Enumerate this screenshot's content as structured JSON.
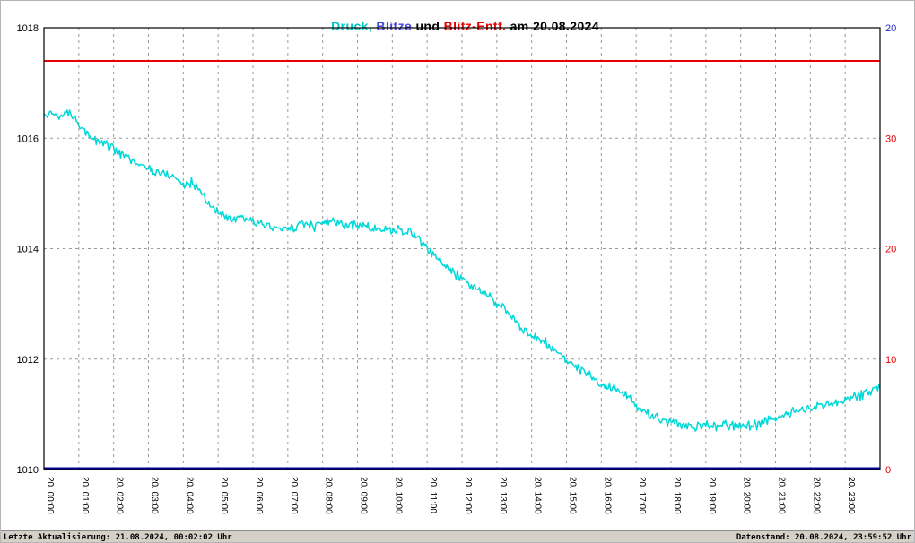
{
  "title": {
    "druck": "Druck,",
    "blitze": " Blitze",
    "und": " und ",
    "entf": "Blitz-Entf.",
    "date": " am 20.08.2024"
  },
  "colors": {
    "druck": "#00d8d8",
    "blitze": "#000090",
    "blitz_entf": "#e80000",
    "grid": "#9a9a9a",
    "axis_text": "#000000",
    "right_axis_red_text": "#e80000",
    "right_axis_blue_text": "#2a2acc",
    "footer_background": "#d4d0c8"
  },
  "footer": {
    "left": "Letzte Aktualisierung: 21.08.2024, 00:02:02 Uhr",
    "right": "Datenstand: 20.08.2024, 23:59:52 Uhr"
  },
  "chart_data": {
    "type": "line",
    "title": "Druck, Blitze und Blitz-Entf. am 20.08.2024",
    "x": {
      "start_hour": 0,
      "end_hour": 24,
      "tick_labels": [
        "20. 00:00",
        "20. 01:00",
        "20. 02:00",
        "20. 03:00",
        "20. 04:00",
        "20. 05:00",
        "20. 06:00",
        "20. 07:00",
        "20. 08:00",
        "20. 09:00",
        "20. 10:00",
        "20. 11:00",
        "20. 12:00",
        "20. 13:00",
        "20. 14:00",
        "20. 15:00",
        "20. 16:00",
        "20. 17:00",
        "20. 18:00",
        "20. 19:00",
        "20. 20:00",
        "20. 21:00",
        "20. 22:00",
        "20. 23:00"
      ]
    },
    "left_axis": {
      "lim": [
        1010,
        1018
      ],
      "ticks": [
        1010,
        1012,
        1014,
        1016,
        1018
      ]
    },
    "right_axis_red": {
      "lim": [
        0,
        40
      ],
      "ticks": [
        0,
        10,
        20,
        30
      ]
    },
    "right_axis_blue": {
      "lim": [
        0,
        20
      ],
      "ticks": [
        20
      ]
    },
    "grid": {
      "vertical": "hourly-dashed",
      "horizontal": "every-2hPa-dashed",
      "color": "#9a9a9a"
    },
    "series": [
      {
        "name": "Druck",
        "axis": "left",
        "color": "#00d8d8",
        "x_step_minutes": 15,
        "values": [
          1016.4,
          1016.45,
          1016.4,
          1016.45,
          1016.3,
          1016.1,
          1015.95,
          1015.9,
          1015.8,
          1015.7,
          1015.6,
          1015.5,
          1015.45,
          1015.4,
          1015.35,
          1015.3,
          1015.15,
          1015.2,
          1015.05,
          1014.8,
          1014.65,
          1014.55,
          1014.5,
          1014.55,
          1014.5,
          1014.45,
          1014.4,
          1014.35,
          1014.35,
          1014.4,
          1014.45,
          1014.4,
          1014.45,
          1014.5,
          1014.45,
          1014.4,
          1014.45,
          1014.4,
          1014.35,
          1014.35,
          1014.3,
          1014.35,
          1014.3,
          1014.2,
          1014.0,
          1013.85,
          1013.7,
          1013.55,
          1013.45,
          1013.35,
          1013.25,
          1013.15,
          1013.0,
          1012.9,
          1012.7,
          1012.55,
          1012.45,
          1012.35,
          1012.25,
          1012.15,
          1012.0,
          1011.85,
          1011.75,
          1011.65,
          1011.55,
          1011.5,
          1011.45,
          1011.35,
          1011.15,
          1011.05,
          1010.95,
          1010.9,
          1010.85,
          1010.8,
          1010.78,
          1010.8,
          1010.8,
          1010.78,
          1010.8,
          1010.78,
          1010.8,
          1010.78,
          1010.82,
          1010.88,
          1010.95,
          1011.0,
          1011.05,
          1011.08,
          1011.1,
          1011.18,
          1011.15,
          1011.2,
          1011.25,
          1011.3,
          1011.35,
          1011.45,
          1011.5
        ]
      },
      {
        "name": "Blitze",
        "axis": "right_blue",
        "color": "#000090",
        "constant_value": 0
      },
      {
        "name": "Blitz-Entf.",
        "axis": "right_red",
        "color": "#e80000",
        "constant_value": 37
      }
    ]
  }
}
